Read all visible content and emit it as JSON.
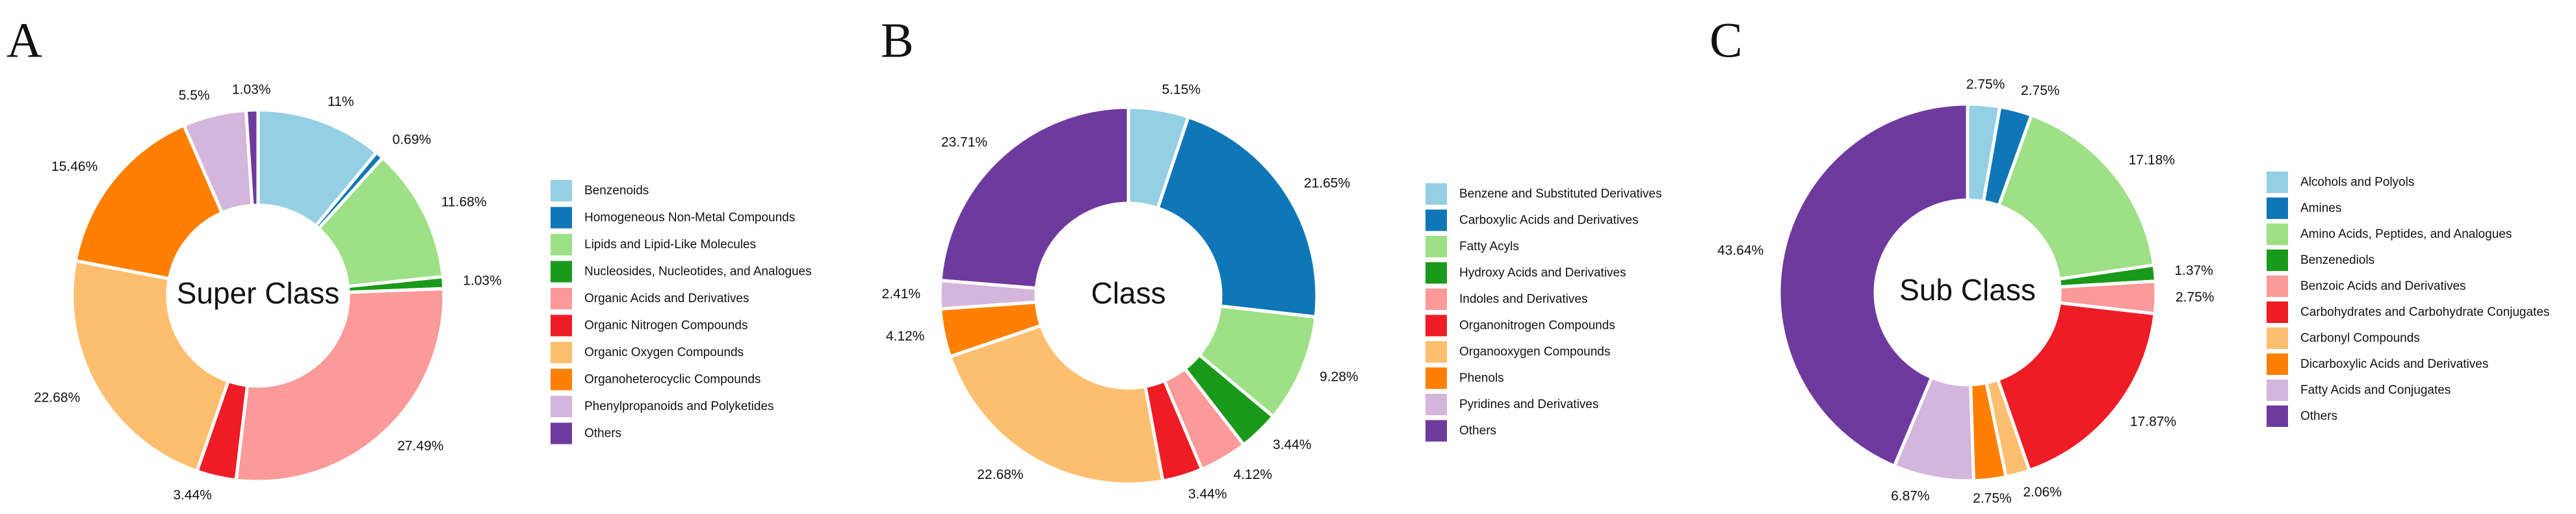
{
  "chart_data": [
    {
      "type": "donut",
      "label": "A",
      "title": "Super Class",
      "categories": [
        "Benzenoids",
        "Homogeneous Non-Metal Compounds",
        "Lipids and Lipid-Like Molecules",
        "Nucleosides, Nucleotides, and Analogues",
        "Organic Acids and Derivatives",
        "Organic Nitrogen Compounds",
        "Organic Oxygen Compounds",
        "Organoheterocyclic Compounds",
        "Phenylpropanoids and Polyketides",
        "Others"
      ],
      "values": [
        11,
        0.69,
        11.68,
        1.03,
        27.49,
        3.44,
        22.68,
        15.46,
        5.5,
        1.03
      ],
      "value_labels": [
        "11%",
        "0.69%",
        "11.68%",
        "1.03%",
        "27.49%",
        "3.44%",
        "22.68%",
        "15.46%",
        "5.5%",
        "1.03%"
      ],
      "colors": [
        "#95cfe4",
        "#0f77b8",
        "#9de086",
        "#1a9a1a",
        "#fb9a99",
        "#ee1c24",
        "#fdbf6f",
        "#ff7f00",
        "#d4b5dc",
        "#6f3a9e"
      ]
    },
    {
      "type": "donut",
      "label": "B",
      "title": "Class",
      "categories": [
        "Benzene and Substituted Derivatives",
        "Carboxylic Acids and Derivatives",
        "Fatty Acyls",
        "Hydroxy Acids and Derivatives",
        "Indoles and Derivatives",
        "Organonitrogen Compounds",
        "Organooxygen Compounds",
        "Phenols",
        "Pyridines and Derivatives",
        "Others"
      ],
      "values": [
        5.15,
        21.65,
        9.28,
        3.44,
        4.12,
        3.44,
        22.68,
        4.12,
        2.41,
        23.71
      ],
      "value_labels": [
        "5.15%",
        "21.65%",
        "9.28%",
        "3.44%",
        "4.12%",
        "3.44%",
        "22.68%",
        "4.12%",
        "2.41%",
        "23.71%"
      ],
      "colors": [
        "#95cfe4",
        "#0f77b8",
        "#9de086",
        "#1a9a1a",
        "#fb9a99",
        "#ee1c24",
        "#fdbf6f",
        "#ff7f00",
        "#d4b5dc",
        "#6f3a9e"
      ]
    },
    {
      "type": "donut",
      "label": "C",
      "title": "Sub Class",
      "categories": [
        "Alcohols and Polyols",
        "Amines",
        "Amino Acids, Peptides, and Analogues",
        "Benzenediols",
        "Benzoic Acids and Derivatives",
        "Carbohydrates and Carbohydrate Conjugates",
        "Carbonyl Compounds",
        "Dicarboxylic Acids and Derivatives",
        "Fatty Acids and Conjugates",
        "Others"
      ],
      "values": [
        2.75,
        2.75,
        17.18,
        1.37,
        2.75,
        17.87,
        2.06,
        2.75,
        6.87,
        43.64
      ],
      "value_labels": [
        "2.75%",
        "2.75%",
        "17.18%",
        "1.37%",
        "2.75%",
        "17.87%",
        "2.06%",
        "2.75%",
        "6.87%",
        "43.64%"
      ],
      "colors": [
        "#95cfe4",
        "#0f77b8",
        "#9de086",
        "#1a9a1a",
        "#fb9a99",
        "#ee1c24",
        "#fdbf6f",
        "#ff7f00",
        "#d4b5dc",
        "#6f3a9e"
      ]
    }
  ]
}
